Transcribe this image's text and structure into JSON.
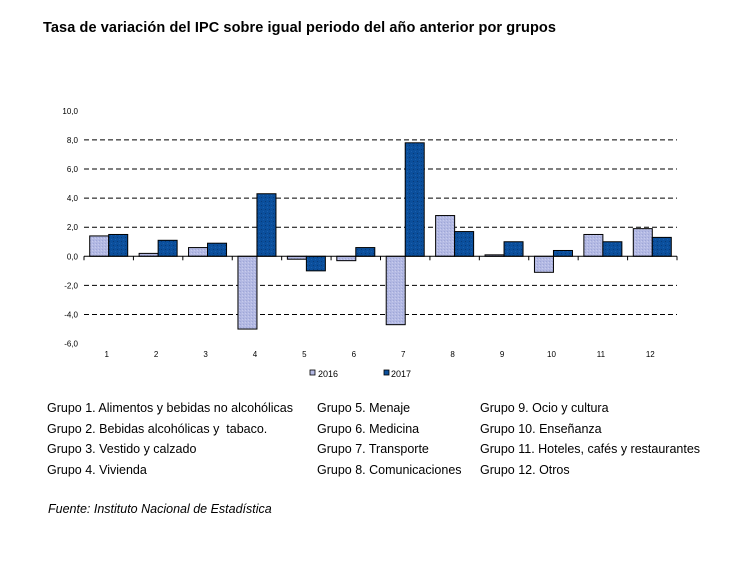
{
  "title": "Tasa de variación del IPC sobre igual periodo del año anterior por grupos",
  "chart_data": {
    "type": "bar",
    "title": "Tasa de variación del IPC sobre igual periodo del año anterior por grupos",
    "xlabel": "",
    "ylabel": "",
    "categories": [
      "1",
      "2",
      "3",
      "4",
      "5",
      "6",
      "7",
      "8",
      "9",
      "10",
      "11",
      "12"
    ],
    "series": [
      {
        "name": "2016",
        "color": "#b3b9e3",
        "values": [
          1.4,
          0.2,
          0.6,
          -5.0,
          -0.2,
          -0.3,
          -4.7,
          2.8,
          0.1,
          -1.1,
          1.5,
          1.9
        ]
      },
      {
        "name": "2017",
        "color": "#0b4f9c",
        "values": [
          1.5,
          1.1,
          0.9,
          4.3,
          -1.0,
          0.6,
          7.8,
          1.7,
          1.0,
          0.4,
          1.0,
          1.3
        ]
      }
    ],
    "ylim": [
      -6.0,
      10.0
    ],
    "yticks": [
      "-6,0",
      "-4,0",
      "-2,0",
      "0,0",
      "2,0",
      "4,0",
      "6,0",
      "8,0",
      "10,0"
    ],
    "ytick_values": [
      -6,
      -4,
      -2,
      0,
      2,
      4,
      6,
      8,
      10
    ],
    "grid": true,
    "grid_style": "dashed",
    "legend_position": "bottom-center"
  },
  "groups_legend": {
    "col1": [
      "Grupo 1. Alimentos y bebidas no alcohólicas",
      "Grupo 2. Bebidas alcohólicas y  tabaco.",
      "Grupo 3. Vestido y calzado",
      "Grupo 4. Vivienda"
    ],
    "col2": [
      "Grupo 5. Menaje",
      "Grupo 6. Medicina",
      "Grupo 7. Transporte",
      "Grupo 8. Comunicaciones"
    ],
    "col3": [
      "Grupo 9. Ocio y cultura",
      "Grupo 10. Enseñanza",
      "Grupo 11. Hoteles, cafés y restaurantes",
      "Grupo 12. Otros"
    ]
  },
  "source": "Fuente: Instituto Nacional de Estadística"
}
